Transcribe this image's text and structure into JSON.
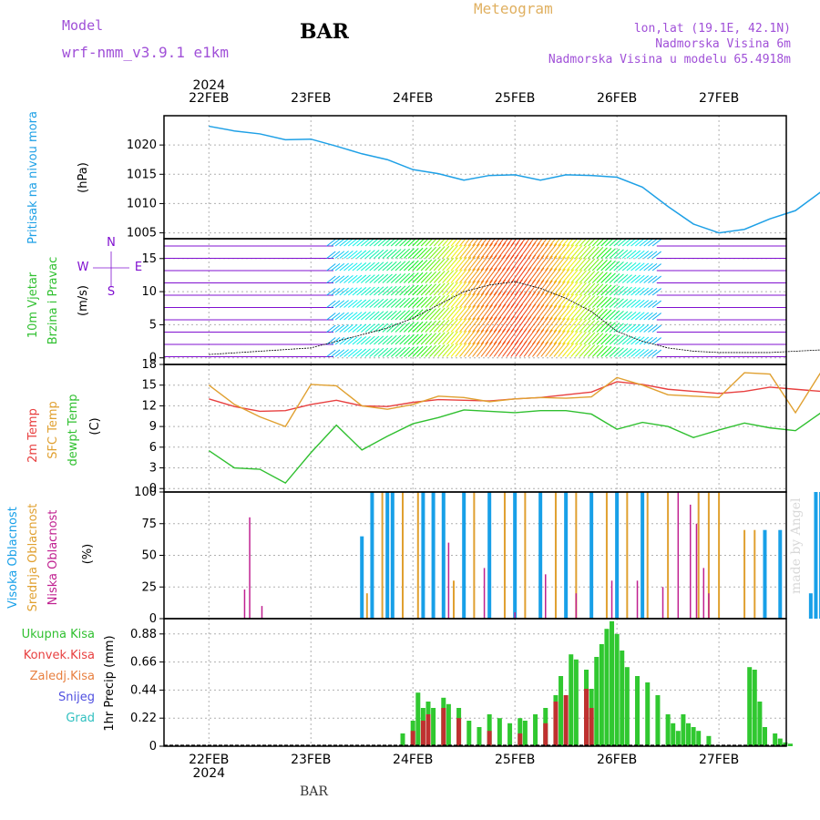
{
  "header": {
    "model_label": "Model",
    "model_name": "wrf-nmm_v3.9.1 e1km",
    "station_title": "BAR",
    "product": "Meteogram",
    "lonlat": "lon,lat (19.1E, 42.1N)",
    "elevation": "Nadmorska Visina 6m",
    "model_elevation": "Nadmorska Visina u modelu 65.4918m"
  },
  "footer": {
    "station": "BAR",
    "watermark": "made by Angel"
  },
  "time_axis": {
    "year": "2024",
    "dates": [
      "22FEB",
      "23FEB",
      "24FEB",
      "25FEB",
      "26FEB",
      "27FEB"
    ]
  },
  "colors": {
    "pressure": "#1ea0e6",
    "temp2m": "#e84040",
    "sfc_temp": "#e0a030",
    "dewpt": "#30c030",
    "cloud_high": "#18a0e8",
    "cloud_mid": "#e0a030",
    "cloud_low": "#c02090",
    "precip_total": "#30c830",
    "precip_conv": "#c03030",
    "wind_purple": "#8010d0"
  },
  "chart_data": [
    {
      "type": "line",
      "name": "pressure",
      "ylabel_name": "Pritisak na nivou mora",
      "ylabel_unit": "(hPa)",
      "ylim": [
        1004,
        1025
      ],
      "yticks": [
        1005,
        1010,
        1015,
        1020
      ],
      "grid": true,
      "series": [
        {
          "name": "Pritisak na nivou mora",
          "x": [
            0,
            0.25,
            0.5,
            0.75,
            1,
            1.25,
            1.5,
            1.75,
            2,
            2.25,
            2.5,
            2.75,
            3,
            3.25,
            3.5,
            3.75,
            4,
            4.25,
            4.5,
            4.75,
            5,
            5.25,
            5.5,
            5.75,
            6
          ],
          "values": [
            1023.2,
            1022.4,
            1021.9,
            1020.9,
            1021.0,
            1019.8,
            1018.5,
            1017.5,
            1015.8,
            1015.1,
            1014.0,
            1014.8,
            1014.9,
            1014.0,
            1014.9,
            1014.8,
            1014.5,
            1012.8,
            1009.5,
            1006.5,
            1005.0,
            1005.6,
            1007.4,
            1008.8,
            1012.0
          ]
        }
      ]
    },
    {
      "type": "line",
      "name": "wind",
      "ylabel_name1": "10m Vjetar",
      "ylabel_name2": "Brzina i Pravac",
      "ylabel_unit": "(m/s)",
      "compass": [
        "N",
        "E",
        "S",
        "W"
      ],
      "ylim": [
        -1,
        18
      ],
      "yticks": [
        0,
        5,
        10,
        15
      ],
      "grid": true,
      "series": [
        {
          "name": "wind_speed",
          "x": [
            0,
            0.5,
            1,
            1.25,
            1.5,
            1.75,
            2,
            2.25,
            2.5,
            2.75,
            3,
            3.25,
            3.5,
            3.75,
            4,
            4.25,
            4.5,
            4.75,
            5,
            5.5,
            6
          ],
          "values": [
            0.5,
            1.0,
            1.5,
            2.5,
            3.5,
            4.5,
            6.0,
            8.0,
            10.0,
            11.0,
            11.5,
            10.5,
            9.0,
            7.0,
            4.0,
            2.5,
            1.5,
            1.0,
            0.8,
            0.8,
            1.2
          ]
        }
      ]
    },
    {
      "type": "line",
      "name": "temperature",
      "ylabel_name1": "2m Temp",
      "ylabel_name2": "SFC Temp",
      "ylabel_name3": "dewpt Temp",
      "ylabel_unit": "(C)",
      "ylim": [
        -0.5,
        18
      ],
      "yticks": [
        0,
        3,
        6,
        9,
        12,
        15,
        18
      ],
      "grid": true,
      "series": [
        {
          "name": "2m Temp",
          "x": [
            0,
            0.25,
            0.5,
            0.75,
            1,
            1.25,
            1.5,
            1.75,
            2,
            2.25,
            2.5,
            2.75,
            3,
            3.25,
            3.5,
            3.75,
            4,
            4.25,
            4.5,
            4.75,
            5,
            5.25,
            5.5,
            5.75,
            6
          ],
          "values": [
            13.0,
            11.9,
            11.2,
            11.3,
            12.2,
            12.8,
            12.0,
            11.9,
            12.5,
            12.9,
            12.8,
            12.7,
            13.0,
            13.2,
            13.6,
            14.0,
            15.5,
            15.1,
            14.4,
            14.1,
            13.8,
            14.1,
            14.7,
            14.4,
            14.1
          ]
        },
        {
          "name": "SFC Temp",
          "x": [
            0,
            0.25,
            0.5,
            0.75,
            1,
            1.25,
            1.5,
            1.75,
            2,
            2.25,
            2.5,
            2.75,
            3,
            3.25,
            3.5,
            3.75,
            4,
            4.25,
            4.5,
            4.75,
            5,
            5.25,
            5.5,
            5.75,
            6
          ],
          "values": [
            15.0,
            12.2,
            10.4,
            9.0,
            15.1,
            14.9,
            12.0,
            11.5,
            12.2,
            13.4,
            13.2,
            12.6,
            13.0,
            13.2,
            13.1,
            13.3,
            16.1,
            15.0,
            13.6,
            13.4,
            13.2,
            16.8,
            16.6,
            11.0,
            16.9
          ]
        },
        {
          "name": "dewpt Temp",
          "x": [
            0,
            0.25,
            0.5,
            0.75,
            1,
            1.25,
            1.5,
            1.75,
            2,
            2.25,
            2.5,
            2.75,
            3,
            3.25,
            3.5,
            3.75,
            4,
            4.25,
            4.5,
            4.75,
            5,
            5.25,
            5.5,
            5.75,
            6
          ],
          "values": [
            5.5,
            3.0,
            2.8,
            0.8,
            5.2,
            9.2,
            5.6,
            7.6,
            9.4,
            10.3,
            11.4,
            11.2,
            11.0,
            11.3,
            11.3,
            10.8,
            8.6,
            9.6,
            9.0,
            7.4,
            8.5,
            9.5,
            8.8,
            8.4,
            11.0
          ]
        }
      ]
    },
    {
      "type": "bar",
      "name": "clouds",
      "ylabel_name1": "Visoka Oblacnost",
      "ylabel_name2": "Srednja Oblacnost",
      "ylabel_name3": "Niska Oblacnost",
      "ylabel_unit": "(%)",
      "ylim": [
        0,
        100
      ],
      "yticks": [
        0,
        25,
        50,
        75,
        100
      ],
      "grid": true,
      "series": [
        {
          "name": "Visoka Oblacnost",
          "x": [
            0.5,
            1.0,
            1.5,
            1.6,
            1.75,
            1.8,
            2.1,
            2.2,
            2.3,
            2.5,
            2.75,
            3.0,
            3.25,
            3.5,
            3.75,
            4.0,
            4.25,
            5.0,
            5.45,
            5.6,
            5.9,
            5.95,
            6.0
          ],
          "values": [
            0,
            0,
            65,
            100,
            100,
            100,
            100,
            100,
            100,
            100,
            100,
            100,
            100,
            100,
            100,
            100,
            100,
            0,
            70,
            70,
            20,
            100,
            100
          ]
        },
        {
          "name": "Srednja Oblacnost",
          "x": [
            1.55,
            1.7,
            1.9,
            2.05,
            2.4,
            2.6,
            2.9,
            3.1,
            3.4,
            3.6,
            3.9,
            4.1,
            4.3,
            4.5,
            4.8,
            4.9,
            5.0,
            5.25,
            5.35
          ],
          "values": [
            20,
            100,
            100,
            100,
            30,
            100,
            100,
            100,
            100,
            100,
            100,
            100,
            100,
            100,
            100,
            100,
            100,
            70,
            70
          ]
        },
        {
          "name": "Niska Oblacnost",
          "x": [
            0.35,
            0.4,
            0.52,
            2.35,
            2.7,
            3.0,
            3.3,
            3.6,
            3.95,
            4.2,
            4.45,
            4.6,
            4.72,
            4.78,
            4.85,
            4.9,
            6.35,
            6.42
          ],
          "values": [
            23,
            80,
            10,
            60,
            40,
            5,
            35,
            20,
            30,
            30,
            25,
            100,
            90,
            75,
            40,
            20,
            18,
            25
          ]
        }
      ]
    },
    {
      "type": "bar",
      "name": "precipitation",
      "ylabel_unit": "1hr Precip (mm)",
      "legend": [
        "Ukupna Kisa",
        "Konvek.Kisa",
        "Zaledj.Kisa",
        "Snijeg",
        "Grad"
      ],
      "ylim": [
        0,
        1.0
      ],
      "yticks": [
        0,
        0.22,
        0.44,
        0.66,
        0.88
      ],
      "grid": true,
      "series": [
        {
          "name": "Ukupna Kisa",
          "x": [
            1.9,
            2.0,
            2.05,
            2.1,
            2.15,
            2.2,
            2.3,
            2.35,
            2.45,
            2.55,
            2.65,
            2.75,
            2.85,
            2.95,
            3.05,
            3.1,
            3.2,
            3.3,
            3.4,
            3.45,
            3.55,
            3.6,
            3.7,
            3.75,
            3.8,
            3.85,
            3.9,
            3.95,
            4.0,
            4.05,
            4.1,
            4.2,
            4.3,
            4.4,
            4.5,
            4.55,
            4.6,
            4.65,
            4.7,
            4.75,
            4.8,
            4.9,
            5.3,
            5.35,
            5.4,
            5.45,
            5.55,
            5.6,
            5.65,
            5.7,
            6.35
          ],
          "values": [
            0.1,
            0.2,
            0.42,
            0.3,
            0.35,
            0.3,
            0.38,
            0.33,
            0.3,
            0.2,
            0.15,
            0.25,
            0.22,
            0.18,
            0.22,
            0.2,
            0.25,
            0.3,
            0.4,
            0.55,
            0.72,
            0.68,
            0.6,
            0.45,
            0.7,
            0.8,
            0.92,
            0.98,
            0.88,
            0.75,
            0.62,
            0.55,
            0.5,
            0.4,
            0.25,
            0.18,
            0.12,
            0.25,
            0.18,
            0.15,
            0.12,
            0.08,
            0.62,
            0.6,
            0.35,
            0.15,
            0.1,
            0.06,
            0.03,
            0.02,
            0.08
          ]
        },
        {
          "name": "Konvek.Kisa",
          "x": [
            2.0,
            2.1,
            2.15,
            2.3,
            2.45,
            2.75,
            3.05,
            3.3,
            3.4,
            3.5,
            3.7,
            3.75
          ],
          "values": [
            0.12,
            0.2,
            0.25,
            0.3,
            0.22,
            0.12,
            0.1,
            0.18,
            0.35,
            0.4,
            0.45,
            0.3
          ]
        }
      ]
    }
  ]
}
